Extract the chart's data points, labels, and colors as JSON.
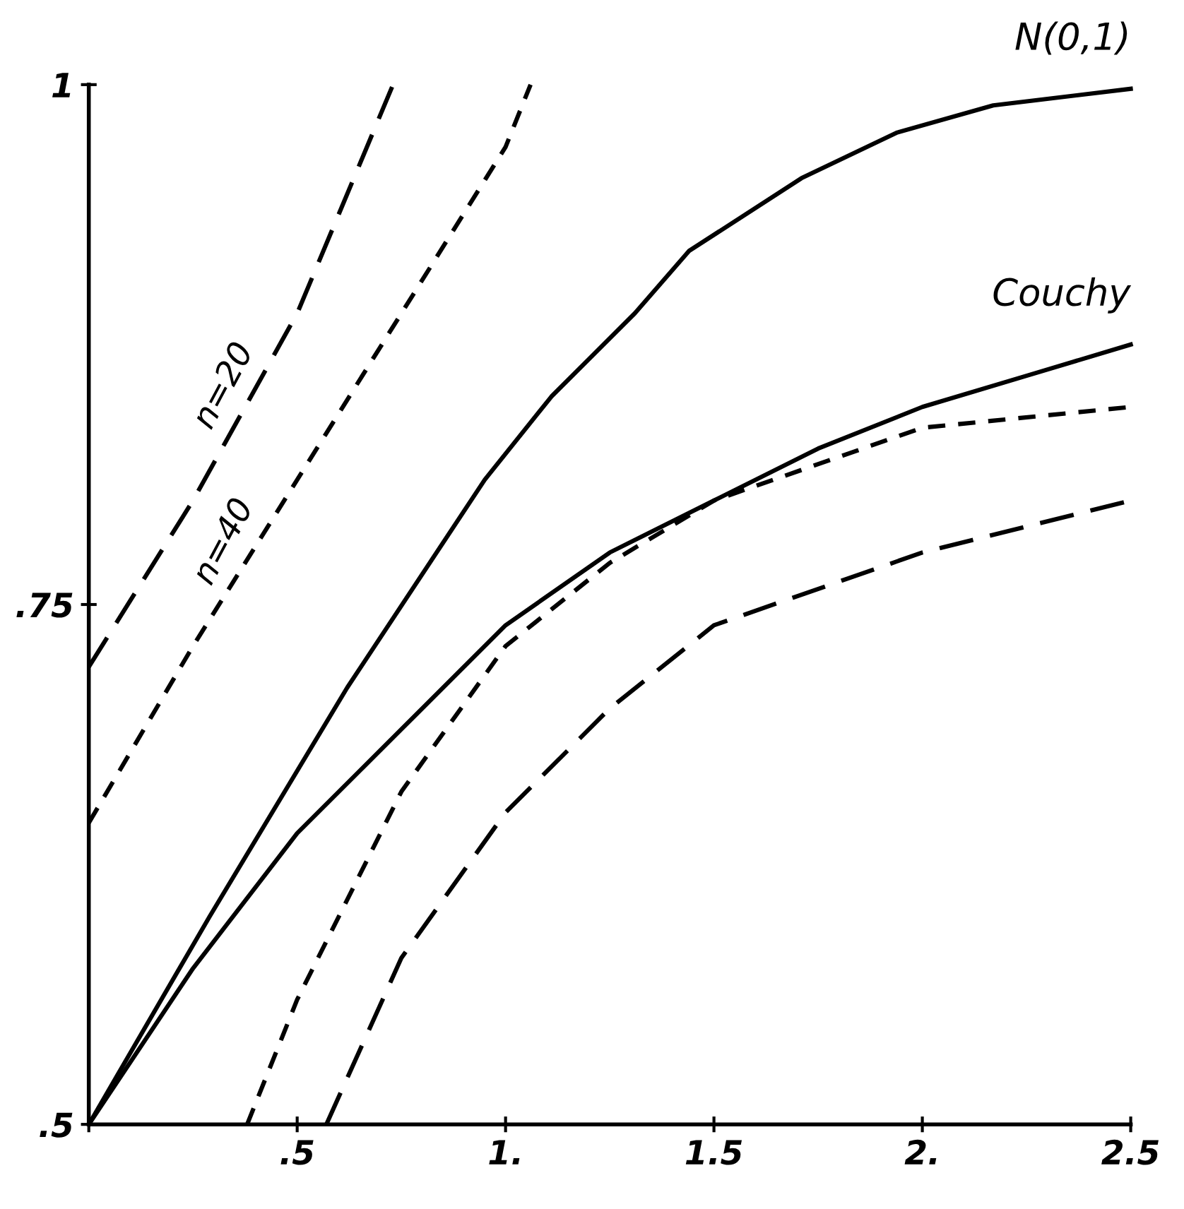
{
  "chart_data": {
    "type": "line",
    "xlim": [
      0,
      2.5
    ],
    "ylim": [
      0.5,
      1
    ],
    "xticks": [
      {
        "value": 0,
        "label": null
      },
      {
        "value": 0.5,
        "label": ".5"
      },
      {
        "value": 1,
        "label": "1."
      },
      {
        "value": 1.5,
        "label": "1.5"
      },
      {
        "value": 2,
        "label": "2."
      },
      {
        "value": 2.5,
        "label": "2.5"
      }
    ],
    "yticks": [
      {
        "value": 0.5,
        "label": ".5"
      },
      {
        "value": 0.75,
        "label": ".75"
      },
      {
        "value": 1,
        "label": "1"
      }
    ],
    "grid": false,
    "legend": false,
    "marker": "none",
    "series": [
      {
        "name": "N(0,1)",
        "color": "#000000",
        "line_style": "solid",
        "x": [
          0,
          0.29,
          0.62,
          0.95,
          1.11,
          1.31,
          1.44,
          1.71,
          1.94,
          2.17,
          2.5
        ],
        "values": [
          0.5,
          0.6,
          0.71,
          0.81,
          0.85,
          0.89,
          0.92,
          0.955,
          0.977,
          0.99,
          0.998
        ]
      },
      {
        "name": "Couchy",
        "color": "#000000",
        "line_style": "solid",
        "x": [
          0,
          0.25,
          0.5,
          0.75,
          1,
          1.25,
          1.5,
          1.75,
          2,
          2.25,
          2.5
        ],
        "values": [
          0.5,
          0.575,
          0.64,
          0.69,
          0.74,
          0.775,
          0.8,
          0.825,
          0.845,
          0.86,
          0.875
        ]
      },
      {
        "name": "n=20",
        "color": "#000000",
        "line_style": "dashed",
        "x": [
          0,
          0.25,
          0.5,
          0.73
        ],
        "values": [
          0.72,
          0.8,
          0.89,
          1.0
        ]
      },
      {
        "name": "n=40",
        "color": "#000000",
        "line_style": "dotted",
        "x": [
          0,
          0.25,
          0.5,
          0.75,
          1.0,
          1.06
        ],
        "values": [
          0.645,
          0.73,
          0.81,
          0.89,
          0.97,
          1.0
        ]
      },
      {
        "color": "#000000",
        "line_style": "dotted",
        "x": [
          0.38,
          0.5,
          0.75,
          1,
          1.25,
          1.5,
          2,
          2.5
        ],
        "values": [
          0.5,
          0.56,
          0.66,
          0.73,
          0.77,
          0.8,
          0.835,
          0.845
        ]
      },
      {
        "color": "#000000",
        "line_style": "dashed",
        "x": [
          0.57,
          0.75,
          1,
          1.25,
          1.5,
          2,
          2.5
        ],
        "values": [
          0.5,
          0.58,
          0.65,
          0.7,
          0.74,
          0.775,
          0.8
        ]
      }
    ]
  }
}
